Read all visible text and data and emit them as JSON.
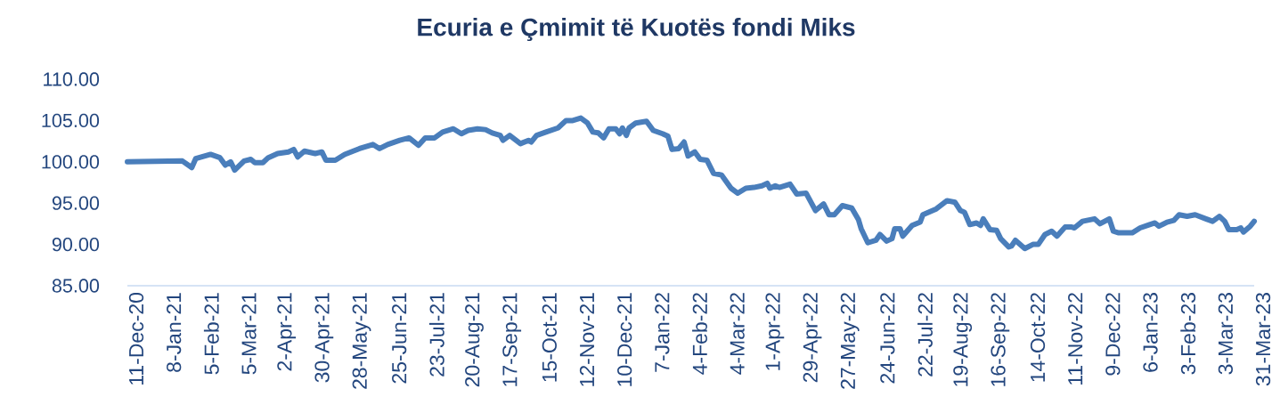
{
  "chart_data": {
    "type": "line",
    "title": "Ecuria e Çmimit të Kuotës fondi Miks",
    "x": [
      "2020-12-11",
      "2021-01-21",
      "2021-01-28",
      "2021-01-31",
      "2021-02-11",
      "2021-02-18",
      "2021-02-22",
      "2021-02-26",
      "2021-03-01",
      "2021-03-08",
      "2021-03-13",
      "2021-03-16",
      "2021-03-22",
      "2021-03-26",
      "2021-04-02",
      "2021-04-10",
      "2021-04-14",
      "2021-04-17",
      "2021-04-22",
      "2021-04-30",
      "2021-05-05",
      "2021-05-08",
      "2021-05-15",
      "2021-05-22",
      "2021-06-02",
      "2021-06-12",
      "2021-06-17",
      "2021-06-23",
      "2021-07-02",
      "2021-07-09",
      "2021-07-16",
      "2021-07-21",
      "2021-07-28",
      "2021-08-03",
      "2021-08-11",
      "2021-08-17",
      "2021-08-22",
      "2021-08-29",
      "2021-09-04",
      "2021-09-09",
      "2021-09-15",
      "2021-09-17",
      "2021-09-22",
      "2021-09-30",
      "2021-10-06",
      "2021-10-08",
      "2021-10-12",
      "2021-10-19",
      "2021-10-28",
      "2021-11-03",
      "2021-11-08",
      "2021-11-14",
      "2021-11-19",
      "2021-11-23",
      "2021-11-27",
      "2021-12-01",
      "2021-12-05",
      "2021-12-10",
      "2021-12-13",
      "2021-12-15",
      "2021-12-18",
      "2021-12-20",
      "2021-12-25",
      "2022-01-02",
      "2022-01-07",
      "2022-01-14",
      "2022-01-18",
      "2022-01-21",
      "2022-01-26",
      "2022-01-30",
      "2022-02-02",
      "2022-02-07",
      "2022-02-11",
      "2022-02-16",
      "2022-02-21",
      "2022-02-27",
      "2022-03-06",
      "2022-03-11",
      "2022-03-17",
      "2022-03-23",
      "2022-03-29",
      "2022-04-02",
      "2022-04-04",
      "2022-04-08",
      "2022-04-11",
      "2022-04-19",
      "2022-04-24",
      "2022-05-01",
      "2022-05-08",
      "2022-05-14",
      "2022-05-18",
      "2022-05-22",
      "2022-05-28",
      "2022-06-04",
      "2022-06-09",
      "2022-06-11",
      "2022-06-16",
      "2022-06-22",
      "2022-06-25",
      "2022-06-30",
      "2022-07-04",
      "2022-07-06",
      "2022-07-10",
      "2022-07-12",
      "2022-07-19",
      "2022-07-25",
      "2022-07-27",
      "2022-08-06",
      "2022-08-14",
      "2022-08-20",
      "2022-08-24",
      "2022-08-27",
      "2022-08-31",
      "2022-09-05",
      "2022-09-08",
      "2022-09-10",
      "2022-09-15",
      "2022-09-20",
      "2022-09-23",
      "2022-09-29",
      "2022-10-01",
      "2022-10-04",
      "2022-10-11",
      "2022-10-17",
      "2022-10-21",
      "2022-10-26",
      "2022-10-31",
      "2022-11-04",
      "2022-11-10",
      "2022-11-15",
      "2022-11-17",
      "2022-11-23",
      "2022-12-02",
      "2022-12-06",
      "2022-12-13",
      "2022-12-16",
      "2022-12-20",
      "2022-12-30",
      "2023-01-05",
      "2023-01-12",
      "2023-01-16",
      "2023-01-19",
      "2023-01-25",
      "2023-01-30",
      "2023-02-03",
      "2023-02-09",
      "2023-02-15",
      "2023-02-23",
      "2023-02-28",
      "2023-03-05",
      "2023-03-09",
      "2023-03-12",
      "2023-03-18",
      "2023-03-21",
      "2023-03-23",
      "2023-03-28",
      "2023-03-31"
    ],
    "values": [
      100.0,
      100.1,
      99.3,
      100.4,
      100.9,
      100.5,
      99.6,
      100.0,
      99.0,
      100.1,
      100.3,
      99.9,
      99.9,
      100.5,
      101.0,
      101.2,
      101.5,
      100.6,
      101.3,
      101.0,
      101.2,
      100.2,
      100.2,
      100.9,
      101.6,
      102.1,
      101.6,
      102.1,
      102.6,
      102.9,
      102.0,
      102.9,
      102.9,
      103.6,
      104.0,
      103.4,
      103.8,
      104.0,
      103.9,
      103.5,
      103.2,
      102.6,
      103.2,
      102.2,
      102.6,
      102.4,
      103.2,
      103.6,
      104.1,
      105.0,
      105.0,
      105.3,
      104.7,
      103.6,
      103.5,
      102.9,
      104.0,
      104.0,
      103.4,
      104.1,
      103.2,
      104.1,
      104.7,
      104.9,
      103.8,
      103.4,
      103.1,
      101.5,
      101.6,
      102.4,
      100.7,
      101.2,
      100.3,
      100.2,
      98.6,
      98.4,
      96.8,
      96.2,
      96.8,
      96.9,
      97.1,
      97.4,
      96.8,
      97.1,
      96.9,
      97.3,
      96.1,
      96.2,
      94.1,
      94.9,
      93.6,
      93.6,
      94.7,
      94.4,
      93.0,
      91.9,
      90.2,
      90.5,
      91.2,
      90.4,
      90.7,
      91.9,
      91.9,
      91.0,
      92.3,
      92.7,
      93.6,
      94.3,
      95.3,
      95.1,
      94.1,
      93.9,
      92.4,
      92.6,
      92.3,
      93.1,
      91.8,
      91.7,
      90.7,
      89.7,
      89.8,
      90.5,
      89.5,
      90.0,
      90.0,
      91.2,
      91.6,
      91.0,
      92.1,
      92.1,
      92.0,
      92.8,
      93.1,
      92.5,
      93.1,
      91.6,
      91.4,
      91.4,
      92.0,
      92.4,
      92.6,
      92.2,
      92.7,
      92.9,
      93.6,
      93.4,
      93.6,
      93.1,
      92.8,
      93.4,
      92.8,
      91.8,
      91.8,
      92.0,
      91.5,
      92.2,
      92.8
    ],
    "color": "#4a7ebb",
    "line_style": "solid",
    "xlim": [
      "2020-12-11",
      "2023-03-31"
    ],
    "xticks": [
      {
        "value": "2020-12-11",
        "label": "11-Dec-20"
      },
      {
        "value": "2021-01-08",
        "label": "8-Jan-21"
      },
      {
        "value": "2021-02-05",
        "label": "5-Feb-21"
      },
      {
        "value": "2021-03-05",
        "label": "5-Mar-21"
      },
      {
        "value": "2021-04-02",
        "label": "2-Apr-21"
      },
      {
        "value": "2021-04-30",
        "label": "30-Apr-21"
      },
      {
        "value": "2021-05-28",
        "label": "28-May-21"
      },
      {
        "value": "2021-06-25",
        "label": "25-Jun-21"
      },
      {
        "value": "2021-07-23",
        "label": "23-Jul-21"
      },
      {
        "value": "2021-08-20",
        "label": "20-Aug-21"
      },
      {
        "value": "2021-09-17",
        "label": "17-Sep-21"
      },
      {
        "value": "2021-10-15",
        "label": "15-Oct-21"
      },
      {
        "value": "2021-11-12",
        "label": "12-Nov-21"
      },
      {
        "value": "2021-12-10",
        "label": "10-Dec-21"
      },
      {
        "value": "2022-01-07",
        "label": "7-Jan-22"
      },
      {
        "value": "2022-02-04",
        "label": "4-Feb-22"
      },
      {
        "value": "2022-03-04",
        "label": "4-Mar-22"
      },
      {
        "value": "2022-04-01",
        "label": "1-Apr-22"
      },
      {
        "value": "2022-04-29",
        "label": "29-Apr-22"
      },
      {
        "value": "2022-05-27",
        "label": "27-May-22"
      },
      {
        "value": "2022-06-24",
        "label": "24-Jun-22"
      },
      {
        "value": "2022-07-22",
        "label": "22-Jul-22"
      },
      {
        "value": "2022-08-19",
        "label": "19-Aug-22"
      },
      {
        "value": "2022-09-16",
        "label": "16-Sep-22"
      },
      {
        "value": "2022-10-14",
        "label": "14-Oct-22"
      },
      {
        "value": "2022-11-11",
        "label": "11-Nov-22"
      },
      {
        "value": "2022-12-09",
        "label": "9-Dec-22"
      },
      {
        "value": "2023-01-06",
        "label": "6-Jan-23"
      },
      {
        "value": "2023-02-03",
        "label": "3-Feb-23"
      },
      {
        "value": "2023-03-03",
        "label": "3-Mar-23"
      },
      {
        "value": "2023-03-31",
        "label": "31-Mar-23"
      }
    ],
    "ylim": [
      85,
      110
    ],
    "yticks": [
      {
        "value": 85,
        "label": "85.00"
      },
      {
        "value": 90,
        "label": "90.00"
      },
      {
        "value": 95,
        "label": "95.00"
      },
      {
        "value": 100,
        "label": "100.00"
      },
      {
        "value": 105,
        "label": "105.00"
      },
      {
        "value": 110,
        "label": "110.00"
      }
    ]
  }
}
